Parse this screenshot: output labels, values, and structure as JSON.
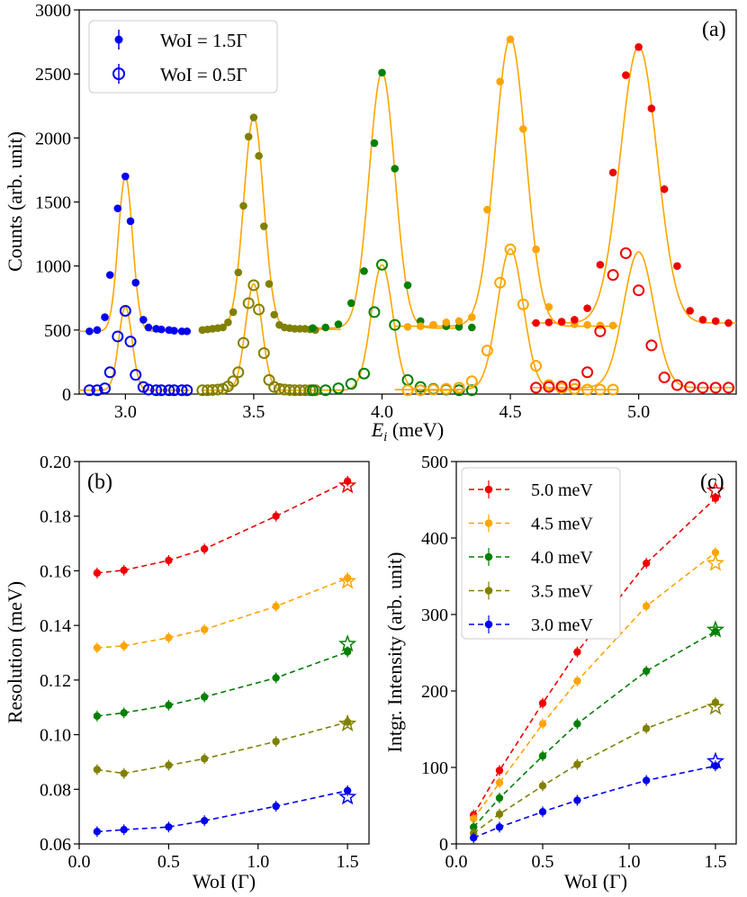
{
  "colors": {
    "e3": "#0000ee",
    "e35": "#808000",
    "e4": "#008000",
    "e45": "#ffa500",
    "e5": "#ee0000",
    "fit": "#ffa500"
  },
  "chart_data": [
    {
      "panel": "a",
      "type": "scatter",
      "tag": "(a)",
      "xlabel_main": "E",
      "xlabel_sub": "i",
      "xlabel_unit": " (meV)",
      "ylabel": "Counts (arb. unit)",
      "xlim": [
        2.82,
        5.38
      ],
      "ylim": [
        0,
        3000
      ],
      "xticks": [
        3.0,
        3.5,
        4.0,
        4.5,
        5.0
      ],
      "xtick_labels": [
        "3.0",
        "3.5",
        "4.0",
        "4.5",
        "5.0"
      ],
      "yticks": [
        0,
        500,
        1000,
        1500,
        2000,
        2500,
        3000
      ],
      "ytick_labels": [
        "0",
        "500",
        "1000",
        "1500",
        "2000",
        "2500",
        "3000"
      ],
      "legend": [
        {
          "label": "WoI = 1.5Γ",
          "marker": "filled"
        },
        {
          "label": "WoI = 0.5Γ",
          "marker": "open"
        }
      ],
      "series": [
        {
          "name": "3.0 meV, WoI = 1.5Γ",
          "color_key": "e3",
          "marker": "filled",
          "x": [
            2.86,
            2.89,
            2.92,
            2.94,
            2.97,
            3.0,
            3.02,
            3.04,
            3.07,
            3.09,
            3.12,
            3.14,
            3.17,
            3.19,
            3.22,
            3.24
          ],
          "y": [
            490,
            500,
            600,
            930,
            1450,
            1700,
            1350,
            870,
            580,
            520,
            510,
            505,
            500,
            495,
            490,
            490
          ]
        },
        {
          "name": "3.0 meV, WoI = 0.5Γ",
          "color_key": "e3",
          "marker": "open",
          "x": [
            2.86,
            2.89,
            2.92,
            2.94,
            2.97,
            3.0,
            3.02,
            3.04,
            3.07,
            3.09,
            3.12,
            3.14,
            3.17,
            3.19,
            3.22,
            3.24
          ],
          "y": [
            30,
            30,
            45,
            170,
            450,
            650,
            410,
            150,
            55,
            35,
            30,
            30,
            30,
            30,
            30,
            30
          ]
        },
        {
          "name": "3.5 meV, WoI = 1.5Γ",
          "color_key": "e35",
          "marker": "filled",
          "x": [
            3.3,
            3.32,
            3.34,
            3.36,
            3.38,
            3.4,
            3.42,
            3.44,
            3.46,
            3.48,
            3.5,
            3.52,
            3.54,
            3.56,
            3.58,
            3.6,
            3.62,
            3.64,
            3.66,
            3.68,
            3.7,
            3.72,
            3.74
          ],
          "y": [
            500,
            505,
            510,
            515,
            520,
            560,
            640,
            950,
            1470,
            2010,
            2160,
            1860,
            1310,
            860,
            620,
            540,
            520,
            515,
            510,
            510,
            510,
            505,
            500
          ]
        },
        {
          "name": "3.5 meV, WoI = 0.5Γ",
          "color_key": "e35",
          "marker": "open",
          "x": [
            3.3,
            3.32,
            3.34,
            3.36,
            3.38,
            3.4,
            3.42,
            3.44,
            3.46,
            3.48,
            3.5,
            3.52,
            3.54,
            3.56,
            3.58,
            3.6,
            3.62,
            3.64,
            3.66,
            3.68,
            3.7,
            3.72,
            3.74
          ],
          "y": [
            30,
            30,
            32,
            35,
            40,
            60,
            100,
            170,
            400,
            710,
            850,
            660,
            320,
            110,
            55,
            40,
            35,
            32,
            30,
            30,
            30,
            30,
            30
          ]
        },
        {
          "name": "4.0 meV, WoI = 1.5Γ",
          "color_key": "e4",
          "marker": "filled",
          "x": [
            3.73,
            3.78,
            3.83,
            3.88,
            3.93,
            3.97,
            4.0,
            4.05,
            4.1,
            4.15,
            4.2,
            4.25,
            4.3,
            4.35
          ],
          "y": [
            515,
            520,
            545,
            710,
            960,
            1960,
            2510,
            1760,
            850,
            570,
            540,
            530,
            525,
            520
          ]
        },
        {
          "name": "4.0 meV, WoI = 0.5Γ",
          "color_key": "e4",
          "marker": "open",
          "x": [
            3.73,
            3.78,
            3.83,
            3.88,
            3.93,
            3.97,
            4.0,
            4.05,
            4.1,
            4.15,
            4.2,
            4.25,
            4.3,
            4.35
          ],
          "y": [
            30,
            30,
            45,
            80,
            160,
            640,
            1010,
            540,
            110,
            55,
            40,
            35,
            30,
            30
          ]
        },
        {
          "name": "4.5 meV, WoI = 1.5Γ",
          "color_key": "e45",
          "marker": "filled",
          "x": [
            4.1,
            4.15,
            4.2,
            4.25,
            4.3,
            4.35,
            4.41,
            4.46,
            4.5,
            4.55,
            4.6,
            4.65,
            4.7,
            4.75,
            4.8,
            4.85,
            4.9
          ],
          "y": [
            525,
            530,
            540,
            560,
            570,
            600,
            1440,
            2440,
            2770,
            2070,
            1130,
            680,
            560,
            545,
            540,
            535,
            535
          ]
        },
        {
          "name": "4.5 meV, WoI = 0.5Γ",
          "color_key": "e45",
          "marker": "open",
          "x": [
            4.1,
            4.15,
            4.2,
            4.25,
            4.3,
            4.35,
            4.41,
            4.46,
            4.5,
            4.55,
            4.6,
            4.65,
            4.7,
            4.75,
            4.8,
            4.85,
            4.9
          ],
          "y": [
            30,
            30,
            35,
            40,
            50,
            100,
            340,
            870,
            1130,
            700,
            220,
            70,
            45,
            40,
            35,
            35,
            35
          ]
        },
        {
          "name": "5.0 meV, WoI = 1.5Γ",
          "color_key": "e5",
          "marker": "filled",
          "x": [
            4.6,
            4.65,
            4.7,
            4.75,
            4.8,
            4.85,
            4.9,
            4.95,
            5.0,
            5.05,
            5.1,
            5.15,
            5.2,
            5.25,
            5.3,
            5.35
          ],
          "y": [
            555,
            560,
            565,
            580,
            670,
            1010,
            1730,
            2490,
            2710,
            2230,
            1600,
            1000,
            650,
            580,
            570,
            555
          ]
        },
        {
          "name": "5.0 meV, WoI = 0.5Γ",
          "color_key": "e5",
          "marker": "open",
          "x": [
            4.6,
            4.65,
            4.7,
            4.75,
            4.8,
            4.85,
            4.9,
            4.95,
            5.0,
            5.05,
            5.1,
            5.15,
            5.2,
            5.25,
            5.3,
            5.35
          ],
          "y": [
            50,
            55,
            60,
            75,
            170,
            490,
            930,
            1100,
            810,
            380,
            130,
            70,
            55,
            50,
            50,
            50
          ]
        }
      ],
      "fits": [
        {
          "center": 3.0,
          "sigma": 0.028,
          "amp": 1210,
          "base": 490,
          "xmin": 2.82,
          "xmax": 3.25
        },
        {
          "center": 3.0,
          "sigma": 0.026,
          "amp": 650,
          "base": 30,
          "xmin": 2.82,
          "xmax": 3.25
        },
        {
          "center": 3.5,
          "sigma": 0.039,
          "amp": 1660,
          "base": 505,
          "xmin": 3.3,
          "xmax": 3.84
        },
        {
          "center": 3.5,
          "sigma": 0.032,
          "amp": 830,
          "base": 30,
          "xmin": 3.3,
          "xmax": 3.84
        },
        {
          "center": 4.0,
          "sigma": 0.05,
          "amp": 2000,
          "base": 515,
          "xmin": 3.7,
          "xmax": 4.3
        },
        {
          "center": 4.0,
          "sigma": 0.042,
          "amp": 980,
          "base": 30,
          "xmin": 3.7,
          "xmax": 4.3
        },
        {
          "center": 4.5,
          "sigma": 0.06,
          "amp": 2250,
          "base": 530,
          "xmin": 4.05,
          "xmax": 4.92
        },
        {
          "center": 4.5,
          "sigma": 0.05,
          "amp": 1100,
          "base": 35,
          "xmin": 4.05,
          "xmax": 4.92
        },
        {
          "center": 5.0,
          "sigma": 0.072,
          "amp": 2160,
          "base": 555,
          "xmin": 4.58,
          "xmax": 5.38
        },
        {
          "center": 5.0,
          "sigma": 0.059,
          "amp": 1060,
          "base": 50,
          "xmin": 4.58,
          "xmax": 5.38
        }
      ]
    },
    {
      "panel": "b",
      "type": "line",
      "tag": "(b)",
      "xlabel": "WoI (Γ)",
      "ylabel": "Resolution (meV)",
      "xlim": [
        0.0,
        1.62
      ],
      "ylim": [
        0.06,
        0.2
      ],
      "xticks": [
        0.0,
        0.5,
        1.0,
        1.5
      ],
      "xtick_labels": [
        "0.0",
        "0.5",
        "1.0",
        "1.5"
      ],
      "yticks": [
        0.06,
        0.08,
        0.1,
        0.12,
        0.14,
        0.16,
        0.18,
        0.2
      ],
      "ytick_labels": [
        "0.06",
        "0.08",
        "0.10",
        "0.12",
        "0.14",
        "0.16",
        "0.18",
        "0.20"
      ],
      "x": [
        0.1,
        0.25,
        0.5,
        0.7,
        1.1,
        1.5
      ],
      "series": [
        {
          "name": "5.0 meV",
          "color_key": "e5",
          "values": [
            0.1592,
            0.1602,
            0.1638,
            0.168,
            0.18,
            0.1928
          ],
          "star": 0.1912
        },
        {
          "name": "4.5 meV",
          "color_key": "e45",
          "values": [
            0.1318,
            0.1325,
            0.1355,
            0.1385,
            0.147,
            0.1573
          ],
          "star": 0.1562
        },
        {
          "name": "4.0 meV",
          "color_key": "e4",
          "values": [
            0.1068,
            0.108,
            0.1108,
            0.1138,
            0.1208,
            0.1303
          ],
          "star": 0.1332
        },
        {
          "name": "3.5 meV",
          "color_key": "e35",
          "values": [
            0.0872,
            0.0858,
            0.0888,
            0.0912,
            0.0975,
            0.1046
          ],
          "star": 0.104
        },
        {
          "name": "3.0 meV",
          "color_key": "e3",
          "values": [
            0.0645,
            0.0652,
            0.0662,
            0.0685,
            0.0738,
            0.0795
          ],
          "star": 0.0772
        }
      ]
    },
    {
      "panel": "c",
      "type": "line",
      "tag": "(c)",
      "xlabel": "WoI (Γ)",
      "ylabel": "Intgr. Intensity (arb. unit)",
      "xlim": [
        0.0,
        1.62
      ],
      "ylim": [
        0,
        500
      ],
      "xticks": [
        0.0,
        0.5,
        1.0,
        1.5
      ],
      "xtick_labels": [
        "0.0",
        "0.5",
        "1.0",
        "1.5"
      ],
      "yticks": [
        0,
        100,
        200,
        300,
        400,
        500
      ],
      "ytick_labels": [
        "0",
        "100",
        "200",
        "300",
        "400",
        "500"
      ],
      "x": [
        0.1,
        0.25,
        0.5,
        0.7,
        1.1,
        1.5
      ],
      "legend_position": "top-left",
      "series": [
        {
          "name": "5.0 meV",
          "color_key": "e5",
          "values": [
            38,
            96,
            184,
            251,
            367,
            452
          ],
          "star": 462
        },
        {
          "name": "4.5 meV",
          "color_key": "e45",
          "values": [
            33,
            80,
            157,
            213,
            311,
            381
          ],
          "star": 367
        },
        {
          "name": "4.0 meV",
          "color_key": "e4",
          "values": [
            22,
            60,
            115,
            157,
            226,
            278
          ],
          "star": 280
        },
        {
          "name": "3.5 meV",
          "color_key": "e35",
          "values": [
            14,
            39,
            76,
            104,
            151,
            185
          ],
          "star": 179
        },
        {
          "name": "3.0 meV",
          "color_key": "e3",
          "values": [
            8,
            22,
            42,
            57,
            83,
            102
          ],
          "star": 108
        }
      ]
    }
  ]
}
